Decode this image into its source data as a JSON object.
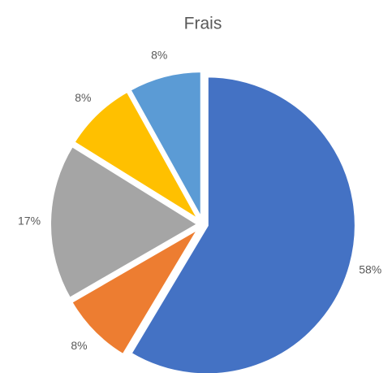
{
  "chart_data": {
    "type": "pie",
    "title": "Frais",
    "values": [
      58,
      8,
      17,
      8,
      8
    ],
    "value_labels": [
      "58%",
      "8%",
      "17%",
      "8%",
      "8%"
    ],
    "colors": [
      "#4472c4",
      "#ed7d31",
      "#a5a5a5",
      "#ffc000",
      "#5b9bd5"
    ]
  }
}
